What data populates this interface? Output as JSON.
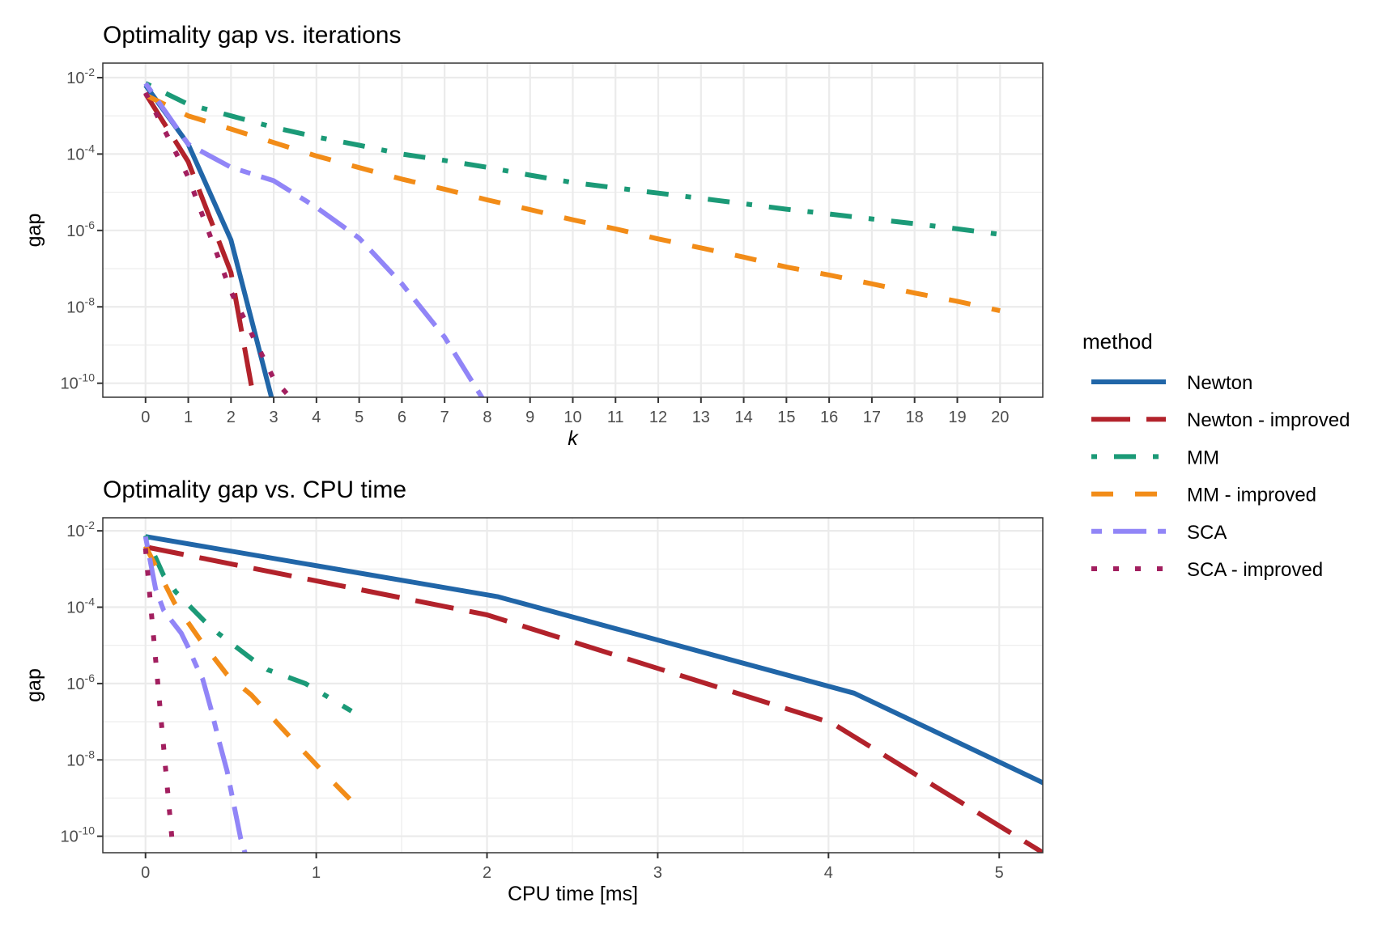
{
  "legend": {
    "title": "method",
    "placement": "right",
    "entries": [
      {
        "name": "Newton",
        "color": "#2166a8",
        "dash": "solid"
      },
      {
        "name": "Newton - improved",
        "color": "#b2222b",
        "dash": "longdash"
      },
      {
        "name": "MM",
        "color": "#1b9a77",
        "dash": "dotdash"
      },
      {
        "name": "MM - improved",
        "color": "#f28c18",
        "dash": "dashed"
      },
      {
        "name": "SCA",
        "color": "#9185f7",
        "dash": "twodash"
      },
      {
        "name": "SCA - improved",
        "color": "#a21f5f",
        "dash": "dotted"
      }
    ]
  },
  "chart_data": [
    {
      "type": "line",
      "title": "Optimality gap vs. iterations",
      "xlabel": "k",
      "ylabel": "gap",
      "xscale": "linear",
      "yscale": "log10",
      "xlim": [
        -1,
        21
      ],
      "ylim": [
        4.3e-11,
        0.024
      ],
      "grid": true,
      "xticks": [
        0,
        1,
        2,
        3,
        4,
        5,
        6,
        7,
        8,
        9,
        10,
        11,
        12,
        13,
        14,
        15,
        16,
        17,
        18,
        19,
        20
      ],
      "yticks": [
        {
          "value": 0.01,
          "base": "10",
          "exp": "-2"
        },
        {
          "value": 0.0001,
          "base": "10",
          "exp": "-4"
        },
        {
          "value": 1e-06,
          "base": "10",
          "exp": "-6"
        },
        {
          "value": 1e-08,
          "base": "10",
          "exp": "-8"
        },
        {
          "value": 1e-10,
          "base": "10",
          "exp": "-10"
        }
      ],
      "series": [
        {
          "name": "Newton",
          "x": [
            0,
            1,
            2,
            3
          ],
          "y": [
            0.0063,
            0.00018,
            5.6e-07,
            2.5e-11
          ]
        },
        {
          "name": "Newton - improved",
          "x": [
            0,
            1,
            2,
            3
          ],
          "y": [
            0.0038,
            6.3e-05,
            7.9e-08,
            5e-14
          ]
        },
        {
          "name": "MM",
          "x": [
            0,
            1,
            2,
            3,
            4,
            5,
            6,
            7,
            8,
            9,
            10,
            11,
            12,
            13,
            14,
            15,
            16,
            17,
            18,
            19,
            20
          ],
          "y": [
            0.0071,
            0.002,
            0.001,
            0.0005,
            0.00028,
            0.00017,
            0.0001,
            6.8e-05,
            4.5e-05,
            2.8e-05,
            1.8e-05,
            1.3e-05,
            9.5e-06,
            6.9e-06,
            5e-06,
            3.6e-06,
            2.7e-06,
            2e-06,
            1.5e-06,
            1.1e-06,
            7.9e-07
          ]
        },
        {
          "name": "MM - improved",
          "x": [
            0,
            1,
            2,
            3,
            4,
            5,
            6,
            7,
            8,
            9,
            10,
            11,
            12,
            13,
            14,
            15,
            16,
            17,
            18,
            19,
            20
          ],
          "y": [
            0.0035,
            0.001,
            0.00045,
            0.0002,
            8.9e-05,
            4.4e-05,
            2.2e-05,
            1.2e-05,
            6.3e-06,
            3.5e-06,
            1.9e-06,
            1.1e-06,
            6e-07,
            3.5e-07,
            2e-07,
            1.1e-07,
            6.8e-08,
            4e-08,
            2.3e-08,
            1.4e-08,
            7.9e-09
          ]
        },
        {
          "name": "SCA",
          "x": [
            0,
            1,
            2,
            3,
            4,
            5,
            6,
            7,
            8
          ],
          "y": [
            0.0071,
            0.00018,
            4.5e-05,
            2e-05,
            4e-06,
            6.3e-07,
            4e-08,
            1.6e-09,
            2.5e-11
          ]
        },
        {
          "name": "SCA - improved",
          "x": [
            0,
            1,
            2,
            3,
            4
          ],
          "y": [
            0.004,
            2.5e-05,
            2.5e-08,
            1.3e-10,
            7.1e-12
          ]
        }
      ]
    },
    {
      "type": "line",
      "title": "Optimality gap vs. CPU time",
      "xlabel": "CPU time [ms]",
      "ylabel": "gap",
      "xscale": "linear",
      "yscale": "log10",
      "xlim": [
        -0.25,
        5.255
      ],
      "ylim": [
        3.7e-11,
        0.022
      ],
      "grid": true,
      "xticks": [
        0,
        1,
        2,
        3,
        4,
        5
      ],
      "yticks": [
        {
          "value": 0.01,
          "base": "10",
          "exp": "-2"
        },
        {
          "value": 0.0001,
          "base": "10",
          "exp": "-4"
        },
        {
          "value": 1e-06,
          "base": "10",
          "exp": "-6"
        },
        {
          "value": 1e-08,
          "base": "10",
          "exp": "-8"
        },
        {
          "value": 1e-10,
          "base": "10",
          "exp": "-10"
        }
      ],
      "series": [
        {
          "name": "Newton",
          "x": [
            0,
            2.06,
            4.15,
            6.2
          ],
          "y": [
            0.0071,
            0.00019,
            5.6e-07,
            2.5e-11
          ]
        },
        {
          "name": "Newton - improved",
          "x": [
            0,
            2.0,
            4.02,
            6.3
          ],
          "y": [
            0.0038,
            6.3e-05,
            9.3e-08,
            5e-14
          ]
        },
        {
          "name": "MM",
          "x": [
            0,
            0.106,
            0.177,
            0.343,
            0.43,
            0.62,
            0.715,
            0.937,
            1.206
          ],
          "y": [
            0.0076,
            0.00068,
            0.00025,
            4.4e-05,
            2e-05,
            4.5e-06,
            2.3e-06,
            1e-06,
            1.9e-07
          ]
        },
        {
          "name": "MM - improved",
          "x": [
            0,
            0.169,
            0.32,
            0.478,
            0.62,
            0.842,
            1.02,
            1.206
          ],
          "y": [
            0.004,
            0.00013,
            1.4e-05,
            1.7e-06,
            5e-07,
            4.2e-08,
            6e-09,
            8.5e-10
          ]
        },
        {
          "name": "SCA",
          "x": [
            0,
            0.059,
            0.106,
            0.153,
            0.209,
            0.248,
            0.296,
            0.335,
            0.383,
            0.43,
            0.478,
            0.557,
            0.6
          ],
          "y": [
            0.0071,
            0.0003,
            8.3e-05,
            4.4e-05,
            2.1e-05,
            9.3e-06,
            3e-06,
            1.3e-06,
            2.2e-07,
            3.2e-08,
            5.1e-09,
            8.9e-11,
            2e-11
          ]
        },
        {
          "name": "SCA - improved",
          "x": [
            0,
            0.152,
            0.17
          ],
          "y": [
            0.0035,
            1.2e-10,
            1e-11
          ]
        }
      ]
    }
  ]
}
